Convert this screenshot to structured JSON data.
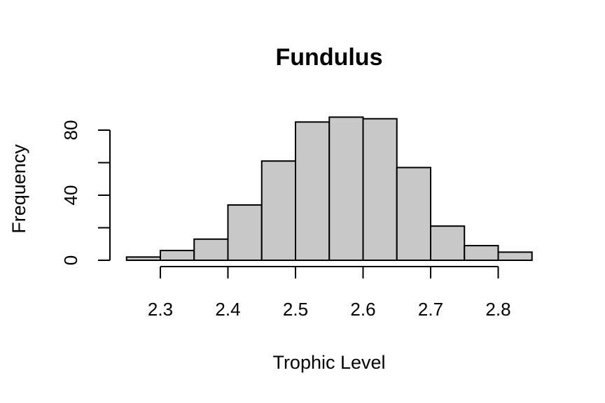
{
  "chart_data": {
    "type": "bar",
    "title": "Fundulus",
    "xlabel": "Trophic Level",
    "ylabel": "Frequency",
    "bins": [
      {
        "start": 2.25,
        "end": 2.3,
        "count": 2
      },
      {
        "start": 2.3,
        "end": 2.35,
        "count": 6
      },
      {
        "start": 2.35,
        "end": 2.4,
        "count": 13
      },
      {
        "start": 2.4,
        "end": 2.45,
        "count": 34
      },
      {
        "start": 2.45,
        "end": 2.5,
        "count": 61
      },
      {
        "start": 2.5,
        "end": 2.55,
        "count": 85
      },
      {
        "start": 2.55,
        "end": 2.6,
        "count": 88
      },
      {
        "start": 2.6,
        "end": 2.65,
        "count": 87
      },
      {
        "start": 2.65,
        "end": 2.7,
        "count": 57
      },
      {
        "start": 2.7,
        "end": 2.75,
        "count": 21
      },
      {
        "start": 2.75,
        "end": 2.8,
        "count": 9
      },
      {
        "start": 2.8,
        "end": 2.85,
        "count": 5
      }
    ],
    "xticks": [
      2.3,
      2.4,
      2.5,
      2.6,
      2.7,
      2.8
    ],
    "xtick_labels": [
      "2.3",
      "2.4",
      "2.5",
      "2.6",
      "2.7",
      "2.8"
    ],
    "yticks": [
      0,
      20,
      40,
      60,
      80
    ],
    "ytick_labels": [
      "0",
      "",
      "40",
      "",
      "80"
    ],
    "xlim": [
      2.24,
      2.86
    ],
    "ylim": [
      0,
      90
    ],
    "grid": false,
    "bar_color": "#c8c8c8",
    "edge_color": "#000000"
  }
}
